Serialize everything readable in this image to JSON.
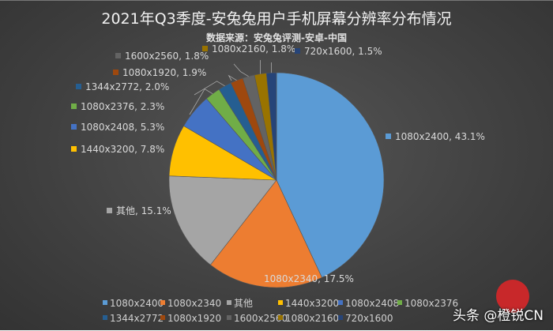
{
  "chart_data": {
    "type": "pie",
    "title": "2021年Q3季度-安兔兔用户手机屏幕分辨率分布情况",
    "subtitle": "数据来源：安兔兔评测-安卓-中国",
    "legend_position": "bottom",
    "slices": [
      {
        "name": "1080x2400",
        "value": 43.1,
        "label": "1080x2400, 43.1%",
        "color": "#5b9bd5"
      },
      {
        "name": "1080x2340",
        "value": 17.5,
        "label": "1080x2340, 17.5%",
        "color": "#ed7d31"
      },
      {
        "name": "其他",
        "value": 15.1,
        "label": "其他, 15.1%",
        "color": "#a5a5a5"
      },
      {
        "name": "1440x3200",
        "value": 7.8,
        "label": "1440x3200, 7.8%",
        "color": "#ffc000"
      },
      {
        "name": "1080x2408",
        "value": 5.3,
        "label": "1080x2408, 5.3%",
        "color": "#4472c4"
      },
      {
        "name": "1080x2376",
        "value": 2.3,
        "label": "1080x2376, 2.3%",
        "color": "#70ad47"
      },
      {
        "name": "1344x2772",
        "value": 2.0,
        "label": "1344x2772, 2.0%",
        "color": "#255e91"
      },
      {
        "name": "1080x1920",
        "value": 1.9,
        "label": "1080x1920, 1.9%",
        "color": "#9e480e"
      },
      {
        "name": "1600x2560",
        "value": 1.8,
        "label": "1600x2560, 1.8%",
        "color": "#636363"
      },
      {
        "name": "1080x2160",
        "value": 1.8,
        "label": "1080x2160, 1.8%",
        "color": "#997300"
      },
      {
        "name": "720x1600",
        "value": 1.5,
        "label": "720x1600, 1.5%",
        "color": "#264478"
      }
    ]
  },
  "watermark": "头条 @橙锐CN"
}
